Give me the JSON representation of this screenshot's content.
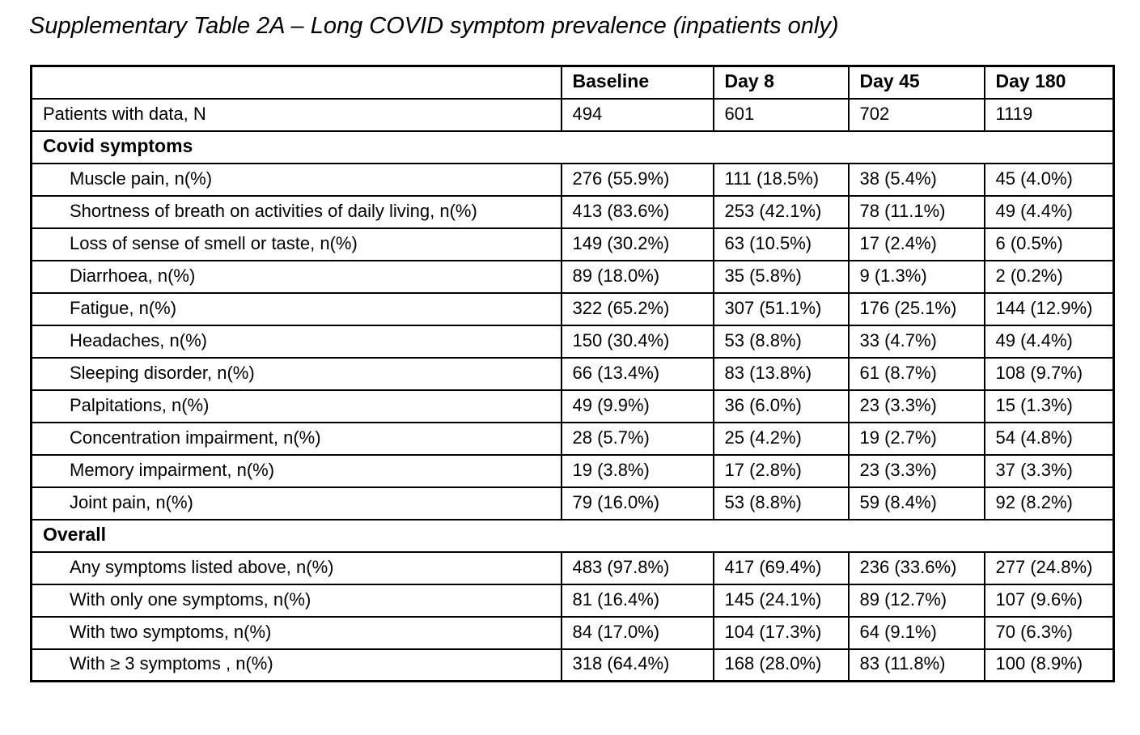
{
  "title": "Supplementary Table 2A – Long COVID symptom prevalence (inpatients only)",
  "table": {
    "columns": [
      "",
      "Baseline",
      "Day 8",
      "Day 45",
      "Day 180"
    ],
    "rows": [
      {
        "type": "data",
        "indent": false,
        "label": "Patients with data, N",
        "values": [
          "494",
          "601",
          "702",
          "1119"
        ]
      },
      {
        "type": "section",
        "label": "Covid symptoms"
      },
      {
        "type": "data",
        "indent": true,
        "label": "Muscle pain, n(%)",
        "values": [
          "276 (55.9%)",
          "111 (18.5%)",
          "38 (5.4%)",
          "45 (4.0%)"
        ]
      },
      {
        "type": "data",
        "indent": true,
        "label": "Shortness of breath on activities of daily living, n(%)",
        "values": [
          "413 (83.6%)",
          "253 (42.1%)",
          "78 (11.1%)",
          "49 (4.4%)"
        ]
      },
      {
        "type": "data",
        "indent": true,
        "label": "Loss of sense of smell or taste, n(%)",
        "values": [
          "149 (30.2%)",
          "63 (10.5%)",
          "17 (2.4%)",
          "6 (0.5%)"
        ]
      },
      {
        "type": "data",
        "indent": true,
        "label": "Diarrhoea, n(%)",
        "values": [
          "89 (18.0%)",
          "35 (5.8%)",
          "9 (1.3%)",
          "2 (0.2%)"
        ]
      },
      {
        "type": "data",
        "indent": true,
        "label": "Fatigue, n(%)",
        "values": [
          "322 (65.2%)",
          "307 (51.1%)",
          "176 (25.1%)",
          "144 (12.9%)"
        ]
      },
      {
        "type": "data",
        "indent": true,
        "label": "Headaches, n(%)",
        "values": [
          "150 (30.4%)",
          "53 (8.8%)",
          "33 (4.7%)",
          "49 (4.4%)"
        ]
      },
      {
        "type": "data",
        "indent": true,
        "label": "Sleeping disorder, n(%)",
        "values": [
          "66 (13.4%)",
          "83 (13.8%)",
          "61 (8.7%)",
          "108 (9.7%)"
        ]
      },
      {
        "type": "data",
        "indent": true,
        "label": "Palpitations, n(%)",
        "values": [
          "49 (9.9%)",
          "36 (6.0%)",
          "23 (3.3%)",
          "15 (1.3%)"
        ]
      },
      {
        "type": "data",
        "indent": true,
        "label": "Concentration impairment, n(%)",
        "values": [
          "28 (5.7%)",
          "25 (4.2%)",
          "19 (2.7%)",
          "54 (4.8%)"
        ]
      },
      {
        "type": "data",
        "indent": true,
        "label": "Memory impairment, n(%)",
        "values": [
          "19 (3.8%)",
          "17 (2.8%)",
          "23 (3.3%)",
          "37 (3.3%)"
        ]
      },
      {
        "type": "data",
        "indent": true,
        "label": "Joint pain, n(%)",
        "values": [
          "79 (16.0%)",
          "53 (8.8%)",
          "59 (8.4%)",
          "92 (8.2%)"
        ]
      },
      {
        "type": "section",
        "label": "Overall"
      },
      {
        "type": "data",
        "indent": true,
        "label": "Any symptoms listed above, n(%)",
        "values": [
          "483 (97.8%)",
          "417 (69.4%)",
          "236 (33.6%)",
          "277 (24.8%)"
        ]
      },
      {
        "type": "data",
        "indent": true,
        "label": "With only one symptoms, n(%)",
        "values": [
          "81 (16.4%)",
          "145 (24.1%)",
          "89 (12.7%)",
          "107 (9.6%)"
        ]
      },
      {
        "type": "data",
        "indent": true,
        "label": "With two symptoms, n(%)",
        "values": [
          "84 (17.0%)",
          "104 (17.3%)",
          "64 (9.1%)",
          "70 (6.3%)"
        ]
      },
      {
        "type": "data",
        "indent": true,
        "label": "With ≥ 3 symptoms , n(%)",
        "values": [
          "318 (64.4%)",
          "168 (28.0%)",
          "83 (11.8%)",
          "100 (8.9%)"
        ]
      }
    ]
  }
}
